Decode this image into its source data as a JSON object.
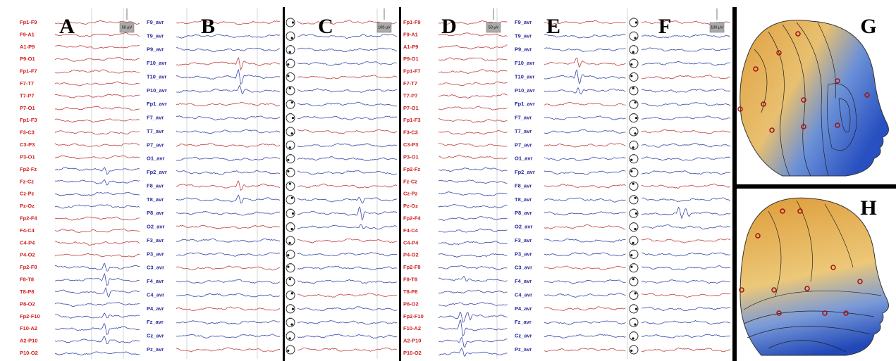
{
  "panels": [
    {
      "letter": "A",
      "scale": "50 µV",
      "channels": [
        "Fp1-F9",
        "F9-A1",
        "A1-P9",
        "P9-O1",
        "Fp1-F7",
        "F7-T7",
        "T7-P7",
        "P7-O1",
        "Fp1-F3",
        "F3-C3",
        "C3-P3",
        "P3-O1",
        "Fp2-Fz",
        "Fz-Cz",
        "Cz-Pz",
        "Pz-Oz",
        "Fp2-F4",
        "F4-C4",
        "C4-P4",
        "P4-O2",
        "Fp2-F8",
        "F8-T8",
        "T8-P8",
        "P8-O2",
        "Fp2-F10",
        "F10-A2",
        "A2-P10",
        "P10-O2"
      ]
    },
    {
      "letter": "B",
      "channels": [
        "F9_avr",
        "T9_avr",
        "P9_avr",
        "F10_avr",
        "T10_avr",
        "P10_avr",
        "Fp1_avr",
        "F7_avr",
        "T7_avr",
        "P7_avr",
        "O1_avr",
        "Fp2_avr",
        "F8_avr",
        "T8_avr",
        "P8_avr",
        "O2_avr",
        "F3_avr",
        "P3_avr",
        "C3_avr",
        "F4_avr",
        "C4_avr",
        "P4_avr",
        "Fz_avr",
        "Cz_avr",
        "Pz_avr"
      ]
    },
    {
      "letter": "C",
      "scale": "100 µV"
    },
    {
      "letter": "D",
      "scale": "50 µV",
      "channels": [
        "Fp1-F9",
        "F9-A1",
        "A1-P9",
        "P9-O1",
        "Fp1-F7",
        "F7-T7",
        "T7-P7",
        "P7-O1",
        "Fp1-F3",
        "F3-C3",
        "C3-P3",
        "P3-O1",
        "Fp2-Fz",
        "Fz-Cz",
        "Cz-Pz",
        "Pz-Oz",
        "Fp2-F4",
        "F4-C4",
        "C4-P4",
        "P4-O2",
        "Fp2-F8",
        "F8-T8",
        "T8-P8",
        "P8-O2",
        "Fp2-F10",
        "F10-A2",
        "A2-P10",
        "P10-O2"
      ]
    },
    {
      "letter": "E",
      "channels": [
        "F9_avr",
        "T9_avr",
        "P9_avr",
        "F10_avr",
        "T10_avr",
        "P10_avr",
        "Fp1_avr",
        "F7_avr",
        "T7_avr",
        "P7_avr",
        "O1_avr",
        "Fp2_avr",
        "F8_avr",
        "T8_avr",
        "P8_avr",
        "O2_avr",
        "F3_avr",
        "P3_avr",
        "C3_avr",
        "F4_avr",
        "C4_avr",
        "P4_avr",
        "Fz_avr",
        "Cz_avr",
        "Pz_avr"
      ]
    },
    {
      "letter": "F",
      "scale": "100 µV"
    },
    {
      "letter": "G"
    },
    {
      "letter": "H"
    }
  ]
}
